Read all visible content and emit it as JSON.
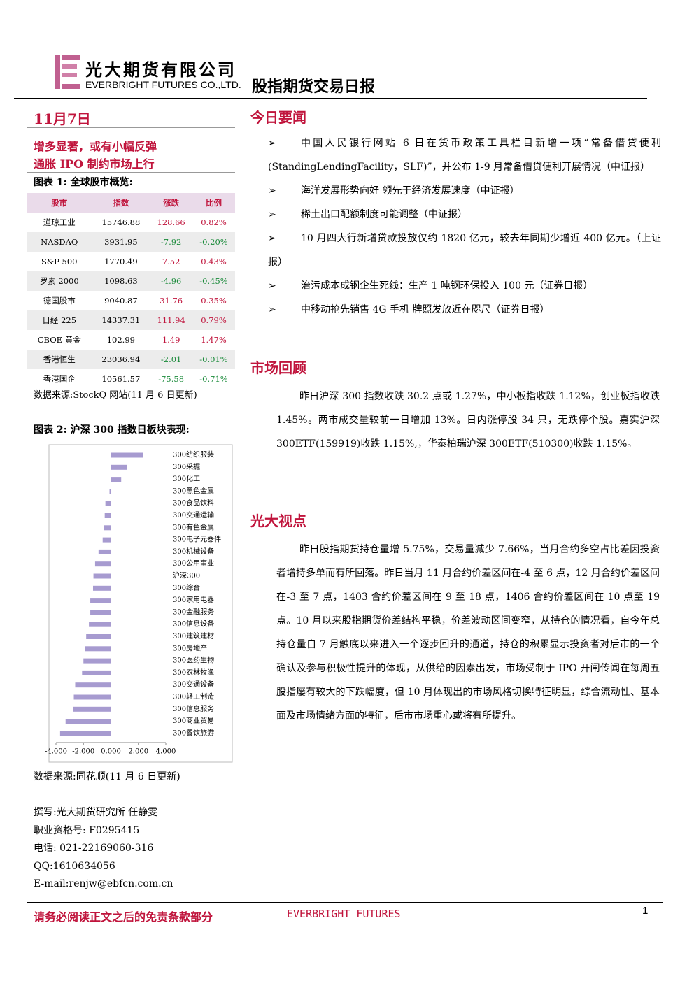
{
  "header": {
    "company_cn": "光大期货有限公司",
    "company_en": "EVERBRIGHT FUTURES CO.,LTD.",
    "report_title": "股指期货交易日报"
  },
  "date": "11月7日",
  "headlines": [
    "增多显著，或有小幅反弹",
    "通胀 IPO 制约市场上行"
  ],
  "table": {
    "caption": "图表 1: 全球股市概览:",
    "columns": [
      "股市",
      "指数",
      "涨跌",
      "比例"
    ],
    "rows": [
      [
        "道琼工业",
        "15746.88",
        "128.66",
        "0.82%"
      ],
      [
        "NASDAQ",
        "3931.95",
        "-7.92",
        "-0.20%"
      ],
      [
        "S&P 500",
        "1770.49",
        "7.52",
        "0.43%"
      ],
      [
        "罗素 2000",
        "1098.63",
        "-4.96",
        "-0.45%"
      ],
      [
        "德国股市",
        "9040.87",
        "31.76",
        "0.35%"
      ],
      [
        "日经 225",
        "14337.31",
        "111.94",
        "0.79%"
      ],
      [
        "CBOE 黄金",
        "102.99",
        "1.49",
        "1.47%"
      ],
      [
        "香港恒生",
        "23036.94",
        "-2.01",
        "-0.01%"
      ],
      [
        "香港国企",
        "10561.57",
        "-75.58",
        "-0.71%"
      ]
    ],
    "source": "数据来源:StockQ 网站(11 月 6 日更新)"
  },
  "chart_data": {
    "type": "bar",
    "orientation": "horizontal",
    "title": "图表 2: 沪深 300 指数日板块表现:",
    "categories": [
      "300纺织服装",
      "300采掘",
      "300化工",
      "300黑色金属",
      "300食品饮料",
      "300交通运输",
      "300有色金属",
      "300电子元器件",
      "300机械设备",
      "300公用事业",
      "沪深300",
      "300综合",
      "300家用电器",
      "300金融服务",
      "300信息设备",
      "300建筑建材",
      "300房地产",
      "300医药生物",
      "300农林牧渔",
      "300交通设备",
      "300轻工制造",
      "300信息服务",
      "300商业贸易",
      "300餐饮旅游"
    ],
    "values": [
      2.35,
      1.15,
      0.75,
      -0.1,
      -0.4,
      -0.45,
      -0.5,
      -0.6,
      -0.9,
      -1.15,
      -1.27,
      -1.3,
      -1.5,
      -1.5,
      -1.6,
      -1.8,
      -1.9,
      -2.0,
      -2.1,
      -2.6,
      -2.7,
      -2.75,
      -3.3,
      -3.7
    ],
    "color": "#a79bd0",
    "xlim": [
      -4,
      4
    ],
    "xticks": [
      {
        "value": -4,
        "label": "-4.000"
      },
      {
        "value": -2,
        "label": "-2.000"
      },
      {
        "value": 0,
        "label": "0.000"
      },
      {
        "value": 2,
        "label": "2.000"
      },
      {
        "value": 4,
        "label": "4.000"
      }
    ]
  },
  "chart_source": "数据来源:同花顺(11 月 6 日更新)",
  "author": [
    "撰写:光大期货研究所 任静雯",
    "职业资格号: F0295415",
    "电话: 021-22169060-316",
    "QQ:1610634056",
    "E-mail:renjw@ebfcn.com.cn"
  ],
  "sections": [
    {
      "heading": "今日要闻",
      "bullets": [
        "中国人民银行网站 6 日在货币政策工具栏目新增一项“常备借贷便利(StandingLendingFacility，SLF)”，并公布 1-9 月常备借贷便利开展情况（中证报）",
        "海洋发展形势向好 领先于经济发展速度（中证报）",
        "稀土出口配额制度可能调整（中证报）",
        "10 月四大行新增贷款投放仅约 1820 亿元，较去年同期少增近 400 亿元。（上证报）",
        "治污成本成钢企生死线：生产 1 吨钢环保投入 100 元（证券日报）",
        "中移动抢先销售 4G 手机 牌照发放近在咫尺（证券日报）"
      ]
    },
    {
      "heading": "市场回顾",
      "paragraph": "昨日沪深 300 指数收跌 30.2 点或 1.27%，中小板指收跌 1.12%，创业板指收跌 1.45%。两市成交量较前一日增加 13%。日内涨停股 34 只，无跌停个股。嘉实沪深 300ETF(159919)收跌 1.15%,，华泰柏瑞沪深 300ETF(510300)收跌 1.15%。"
    },
    {
      "heading": "光大视点",
      "paragraph": "昨日股指期货持仓量增 5.75%，交易量减少 7.66%，当月合约多空占比差因投资者增持多单而有所回落。昨日当月 11 月合约价差区间在-4 至 6 点，12 月合约价差区间在-3 至 7 点，1403 合约价差区间在 9 至 18 点，1406 合约价差区间在 10 点至 19 点。10 月以来股指期货价差结构平稳，价差波动区间变窄，从持仓的情况看，自今年总持仓量自 7 月触底以来进入一个逐步回升的通道，持仓的积累显示投资者对后市的一个确认及参与积极性提升的体现，从供给的因素出发，市场受制于 IPO 开闸传闻在每周五股指屡有较大的下跌幅度，但 10 月体现出的市场风格切换特征明显，综合流动性、基本面及市场情绪方面的特征，后市市场重心或将有所提升。"
    }
  ],
  "footer": {
    "disclaimer": "请务必阅读正文之后的免责条款部分",
    "brand": "EVERBRIGHT FUTURES",
    "page": "1"
  }
}
